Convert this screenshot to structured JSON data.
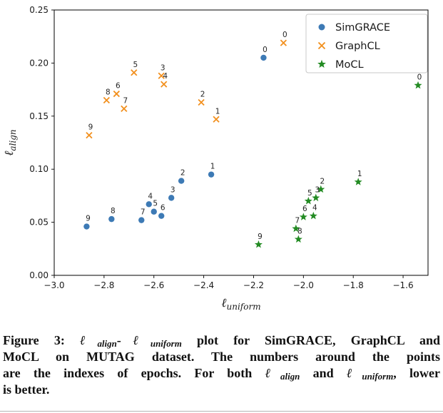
{
  "chart_data": {
    "type": "scatter",
    "title": "",
    "xlabel": {
      "symbol": "ℓ",
      "subscript": "uniform"
    },
    "ylabel": {
      "symbol": "ℓ",
      "subscript": "align"
    },
    "xlim": [
      -3.0,
      -1.5
    ],
    "ylim": [
      0.0,
      0.25
    ],
    "grid": false,
    "legend_position": "upper right",
    "x_ticks": [
      -3.0,
      -2.8,
      -2.6,
      -2.4,
      -2.2,
      -2.0,
      -1.8,
      -1.6
    ],
    "x_tick_labels": [
      "−3.0",
      "−2.8",
      "−2.6",
      "−2.4",
      "−2.2",
      "−2.0",
      "−1.8",
      "−1.6"
    ],
    "y_ticks": [
      0.0,
      0.05,
      0.1,
      0.15,
      0.2,
      0.25
    ],
    "y_tick_labels": [
      "0.00",
      "0.05",
      "0.10",
      "0.15",
      "0.20",
      "0.25"
    ],
    "series": [
      {
        "name": "SimGRACE",
        "marker": "circle",
        "color": "#3d7ab5",
        "points": [
          {
            "label": "0",
            "x": -2.16,
            "y": 0.205
          },
          {
            "label": "1",
            "x": -2.37,
            "y": 0.095
          },
          {
            "label": "2",
            "x": -2.49,
            "y": 0.089
          },
          {
            "label": "3",
            "x": -2.53,
            "y": 0.073
          },
          {
            "label": "4",
            "x": -2.62,
            "y": 0.067
          },
          {
            "label": "5",
            "x": -2.6,
            "y": 0.06
          },
          {
            "label": "6",
            "x": -2.57,
            "y": 0.056
          },
          {
            "label": "7",
            "x": -2.65,
            "y": 0.052
          },
          {
            "label": "8",
            "x": -2.77,
            "y": 0.053
          },
          {
            "label": "9",
            "x": -2.87,
            "y": 0.046
          }
        ]
      },
      {
        "name": "GraphCL",
        "marker": "x",
        "color": "#f2901e",
        "points": [
          {
            "label": "0",
            "x": -2.08,
            "y": 0.219
          },
          {
            "label": "1",
            "x": -2.35,
            "y": 0.147
          },
          {
            "label": "2",
            "x": -2.41,
            "y": 0.163
          },
          {
            "label": "3",
            "x": -2.57,
            "y": 0.188
          },
          {
            "label": "4",
            "x": -2.56,
            "y": 0.18
          },
          {
            "label": "5",
            "x": -2.68,
            "y": 0.191
          },
          {
            "label": "6",
            "x": -2.75,
            "y": 0.171
          },
          {
            "label": "7",
            "x": -2.72,
            "y": 0.157
          },
          {
            "label": "8",
            "x": -2.79,
            "y": 0.165
          },
          {
            "label": "9",
            "x": -2.86,
            "y": 0.132
          }
        ]
      },
      {
        "name": "MoCL",
        "marker": "star",
        "color": "#238b23",
        "points": [
          {
            "label": "0",
            "x": -1.54,
            "y": 0.179
          },
          {
            "label": "1",
            "x": -1.78,
            "y": 0.088
          },
          {
            "label": "2",
            "x": -1.93,
            "y": 0.081
          },
          {
            "label": "3",
            "x": -1.95,
            "y": 0.073
          },
          {
            "label": "4",
            "x": -1.96,
            "y": 0.056
          },
          {
            "label": "5",
            "x": -1.98,
            "y": 0.07
          },
          {
            "label": "6",
            "x": -2.0,
            "y": 0.055
          },
          {
            "label": "7",
            "x": -2.03,
            "y": 0.044
          },
          {
            "label": "8",
            "x": -2.02,
            "y": 0.034
          },
          {
            "label": "9",
            "x": -2.18,
            "y": 0.029
          }
        ]
      }
    ]
  },
  "caption": {
    "lines": [
      {
        "justify": true,
        "segments": [
          {
            "t": "Figure 3: ",
            "s": "b"
          },
          {
            "t": "ℓ",
            "s": "m"
          },
          {
            "t": "align",
            "s": "ms"
          },
          {
            "t": "-",
            "s": "b"
          },
          {
            "t": "ℓ",
            "s": "m"
          },
          {
            "t": "uniform",
            "s": "ms"
          },
          {
            "t": " plot for SimGRACE, GraphCL and",
            "s": "b"
          }
        ]
      },
      {
        "justify": true,
        "segments": [
          {
            "t": "MoCL on MUTAG dataset. The numbers around the points",
            "s": "b"
          }
        ]
      },
      {
        "justify": true,
        "segments": [
          {
            "t": "are the indexes of epochs. For both ",
            "s": "b"
          },
          {
            "t": "ℓ",
            "s": "m"
          },
          {
            "t": "align",
            "s": "ms"
          },
          {
            "t": " and ",
            "s": "b"
          },
          {
            "t": "ℓ",
            "s": "m"
          },
          {
            "t": "uniform",
            "s": "ms"
          },
          {
            "t": ", lower",
            "s": "b"
          }
        ]
      },
      {
        "justify": false,
        "segments": [
          {
            "t": "is better.",
            "s": "b"
          }
        ]
      }
    ]
  }
}
